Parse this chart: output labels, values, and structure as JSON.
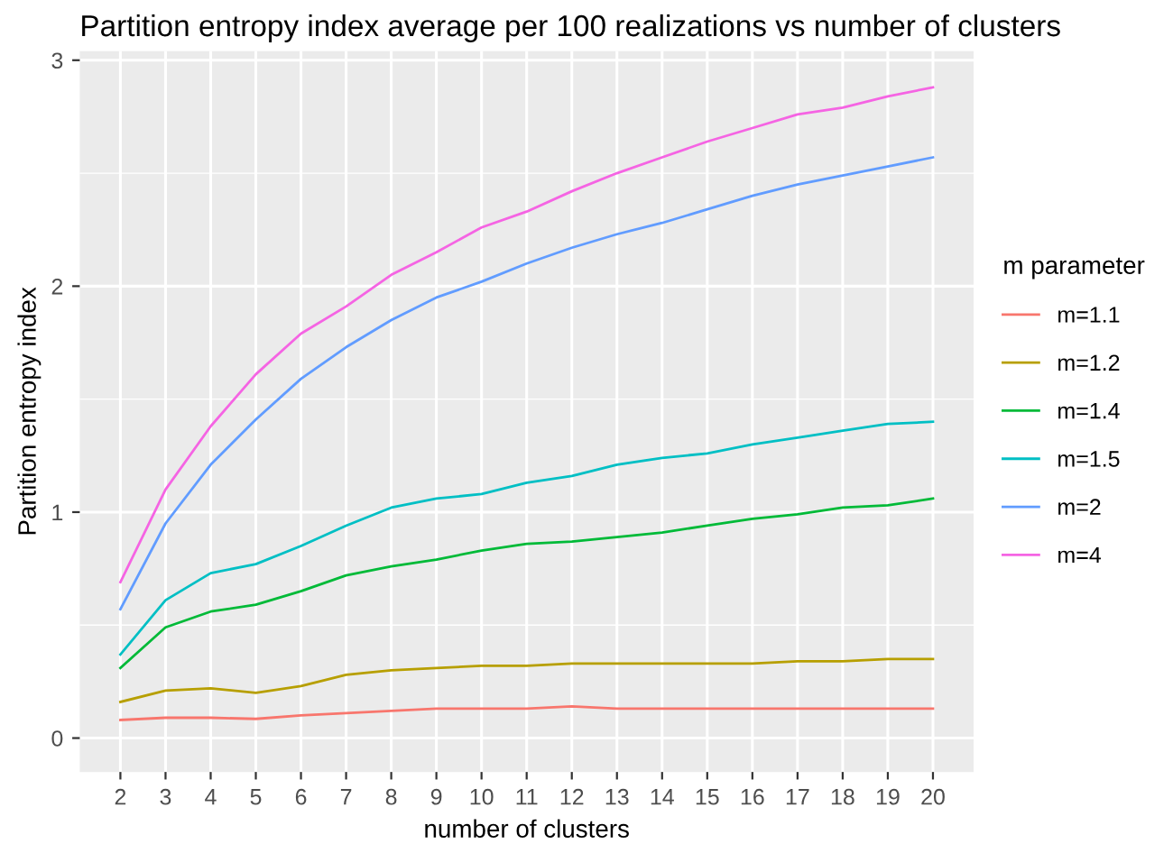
{
  "chart_data": {
    "type": "line",
    "title": "Partition entropy index average per 100 realizations vs number of clusters",
    "xlabel": "number of clusters",
    "ylabel": "Partition entropy index",
    "legend_title": "m parameter",
    "x": [
      2,
      3,
      4,
      5,
      6,
      7,
      8,
      9,
      10,
      11,
      12,
      13,
      14,
      15,
      16,
      17,
      18,
      19,
      20
    ],
    "series": [
      {
        "name": "m=1.1",
        "color": "#f8766d",
        "values": [
          0.08,
          0.09,
          0.09,
          0.085,
          0.1,
          0.11,
          0.12,
          0.13,
          0.13,
          0.13,
          0.14,
          0.13,
          0.13,
          0.13,
          0.13,
          0.13,
          0.13,
          0.13,
          0.13
        ]
      },
      {
        "name": "m=1.2",
        "color": "#b79f00",
        "values": [
          0.16,
          0.21,
          0.22,
          0.2,
          0.23,
          0.28,
          0.3,
          0.31,
          0.32,
          0.32,
          0.33,
          0.33,
          0.33,
          0.33,
          0.33,
          0.34,
          0.34,
          0.35,
          0.35
        ]
      },
      {
        "name": "m=1.4",
        "color": "#00ba38",
        "values": [
          0.31,
          0.49,
          0.56,
          0.59,
          0.65,
          0.72,
          0.76,
          0.79,
          0.83,
          0.86,
          0.87,
          0.89,
          0.91,
          0.94,
          0.97,
          0.99,
          1.02,
          1.03,
          1.06
        ]
      },
      {
        "name": "m=1.5",
        "color": "#00bfc4",
        "values": [
          0.37,
          0.61,
          0.73,
          0.77,
          0.85,
          0.94,
          1.02,
          1.06,
          1.08,
          1.13,
          1.16,
          1.21,
          1.24,
          1.26,
          1.3,
          1.33,
          1.36,
          1.39,
          1.4
        ]
      },
      {
        "name": "m=2",
        "color": "#619cff",
        "values": [
          0.57,
          0.95,
          1.21,
          1.41,
          1.59,
          1.73,
          1.85,
          1.95,
          2.02,
          2.1,
          2.17,
          2.23,
          2.28,
          2.34,
          2.4,
          2.45,
          2.49,
          2.53,
          2.57
        ]
      },
      {
        "name": "m=4",
        "color": "#f564e3",
        "values": [
          0.69,
          1.1,
          1.38,
          1.61,
          1.79,
          1.91,
          2.05,
          2.15,
          2.26,
          2.33,
          2.42,
          2.5,
          2.57,
          2.64,
          2.7,
          2.76,
          2.79,
          2.84,
          2.88
        ]
      }
    ],
    "xlim": [
      1.1,
      20.9
    ],
    "ylim": [
      -0.15,
      3.04
    ],
    "xticks": [
      2,
      3,
      4,
      5,
      6,
      7,
      8,
      9,
      10,
      11,
      12,
      13,
      14,
      15,
      16,
      17,
      18,
      19,
      20
    ],
    "yticks": [
      0,
      1,
      2,
      3
    ],
    "grid": true,
    "legend": "right",
    "marker": "none",
    "line_style": "solid"
  }
}
